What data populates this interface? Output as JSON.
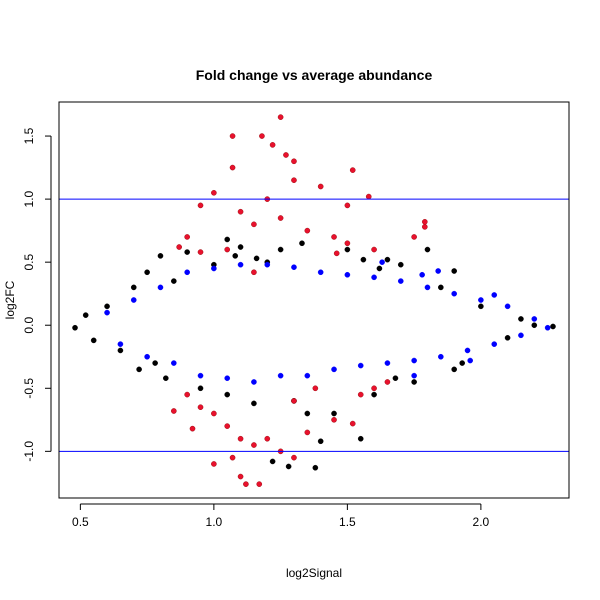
{
  "chart_data": {
    "type": "scatter",
    "title": "Fold change vs average abundance",
    "xlabel": "log2Signal",
    "ylabel": "log2FC",
    "xlim": [
      0.42,
      2.33
    ],
    "ylim": [
      -1.37,
      1.77
    ],
    "xticks": [
      0.5,
      1.0,
      1.5,
      2.0
    ],
    "yticks": [
      -1.0,
      -0.5,
      0.0,
      0.5,
      1.0,
      1.5
    ],
    "xtick_labels": [
      "0.5",
      "1.0",
      "1.5",
      "2.0"
    ],
    "ytick_labels": [
      "-1.0",
      "-0.5",
      "0.0",
      "0.5",
      "1.0",
      "1.5"
    ],
    "hlines": [
      1.0,
      -1.0
    ],
    "hline_color": "#0000ff",
    "series_colors": {
      "black": "#000000",
      "blue": "#0000ff",
      "red": "#e8112d"
    },
    "grid": false,
    "legend": "none",
    "points": {
      "black": [
        [
          0.48,
          -0.02
        ],
        [
          0.52,
          0.08
        ],
        [
          0.55,
          -0.12
        ],
        [
          0.6,
          0.15
        ],
        [
          0.65,
          -0.2
        ],
        [
          0.7,
          0.3
        ],
        [
          0.72,
          -0.35
        ],
        [
          0.75,
          0.42
        ],
        [
          0.78,
          -0.3
        ],
        [
          0.8,
          0.55
        ],
        [
          0.82,
          -0.42
        ],
        [
          0.85,
          0.35
        ],
        [
          0.9,
          0.58
        ],
        [
          0.95,
          -0.5
        ],
        [
          1.0,
          0.48
        ],
        [
          1.05,
          -0.55
        ],
        [
          1.08,
          0.55
        ],
        [
          1.1,
          0.62
        ],
        [
          1.15,
          -0.62
        ],
        [
          1.2,
          0.5
        ],
        [
          1.25,
          0.6
        ],
        [
          1.3,
          -0.6
        ],
        [
          1.33,
          0.65
        ],
        [
          1.35,
          -0.7
        ],
        [
          1.4,
          -0.92
        ],
        [
          1.45,
          -0.7
        ],
        [
          1.5,
          0.6
        ],
        [
          1.55,
          -0.9
        ],
        [
          1.6,
          -0.55
        ],
        [
          1.65,
          0.52
        ],
        [
          1.7,
          0.48
        ],
        [
          1.75,
          -0.45
        ],
        [
          1.8,
          0.6
        ],
        [
          1.85,
          0.3
        ],
        [
          1.9,
          -0.35
        ],
        [
          2.0,
          0.15
        ],
        [
          2.1,
          -0.1
        ],
        [
          2.15,
          0.05
        ],
        [
          2.2,
          0.0
        ],
        [
          2.27,
          -0.01
        ],
        [
          1.22,
          -1.08
        ],
        [
          1.28,
          -1.12
        ],
        [
          1.38,
          -1.13
        ],
        [
          1.05,
          0.68
        ],
        [
          1.16,
          0.53
        ],
        [
          1.68,
          -0.42
        ],
        [
          1.56,
          0.52
        ],
        [
          1.62,
          0.45
        ],
        [
          1.9,
          0.43
        ],
        [
          1.93,
          -0.3
        ]
      ],
      "blue": [
        [
          0.6,
          0.1
        ],
        [
          0.65,
          -0.15
        ],
        [
          0.7,
          0.2
        ],
        [
          0.75,
          -0.25
        ],
        [
          0.8,
          0.3
        ],
        [
          0.85,
          -0.3
        ],
        [
          0.9,
          0.42
        ],
        [
          0.95,
          -0.4
        ],
        [
          1.0,
          0.45
        ],
        [
          1.05,
          -0.42
        ],
        [
          1.1,
          0.48
        ],
        [
          1.15,
          -0.45
        ],
        [
          1.2,
          0.48
        ],
        [
          1.25,
          -0.4
        ],
        [
          1.3,
          0.46
        ],
        [
          1.35,
          -0.4
        ],
        [
          1.4,
          0.42
        ],
        [
          1.45,
          -0.35
        ],
        [
          1.5,
          0.4
        ],
        [
          1.55,
          -0.32
        ],
        [
          1.6,
          0.38
        ],
        [
          1.65,
          -0.3
        ],
        [
          1.7,
          0.35
        ],
        [
          1.75,
          -0.28
        ],
        [
          1.8,
          0.3
        ],
        [
          1.85,
          -0.25
        ],
        [
          1.9,
          0.25
        ],
        [
          1.95,
          -0.2
        ],
        [
          2.0,
          0.2
        ],
        [
          2.05,
          -0.15
        ],
        [
          2.1,
          0.15
        ],
        [
          2.15,
          -0.08
        ],
        [
          2.2,
          0.05
        ],
        [
          2.25,
          -0.02
        ],
        [
          1.63,
          0.5
        ],
        [
          1.78,
          0.4
        ],
        [
          1.84,
          0.43
        ],
        [
          1.96,
          -0.28
        ],
        [
          1.75,
          -0.4
        ],
        [
          2.05,
          0.24
        ]
      ],
      "red": [
        [
          1.25,
          1.65
        ],
        [
          1.18,
          1.5
        ],
        [
          1.07,
          1.5
        ],
        [
          1.22,
          1.43
        ],
        [
          1.27,
          1.35
        ],
        [
          1.07,
          1.25
        ],
        [
          1.52,
          1.23
        ],
        [
          1.3,
          1.3
        ],
        [
          1.0,
          1.05
        ],
        [
          0.95,
          0.95
        ],
        [
          1.1,
          0.9
        ],
        [
          1.3,
          1.15
        ],
        [
          1.4,
          1.1
        ],
        [
          1.58,
          1.02
        ],
        [
          1.2,
          1.0
        ],
        [
          1.15,
          0.8
        ],
        [
          1.25,
          0.85
        ],
        [
          0.9,
          0.7
        ],
        [
          0.95,
          0.58
        ],
        [
          1.05,
          0.6
        ],
        [
          1.35,
          0.75
        ],
        [
          1.45,
          0.7
        ],
        [
          1.5,
          0.65
        ],
        [
          1.6,
          0.6
        ],
        [
          1.75,
          0.7
        ],
        [
          1.79,
          0.82
        ],
        [
          1.79,
          0.78
        ],
        [
          0.9,
          -0.55
        ],
        [
          0.95,
          -0.65
        ],
        [
          1.0,
          -0.7
        ],
        [
          1.05,
          -0.8
        ],
        [
          1.1,
          -0.9
        ],
        [
          1.15,
          -0.95
        ],
        [
          1.2,
          -0.9
        ],
        [
          1.25,
          -1.0
        ],
        [
          1.1,
          -1.2
        ],
        [
          1.07,
          -1.05
        ],
        [
          1.12,
          -1.26
        ],
        [
          1.17,
          -1.26
        ],
        [
          1.3,
          -1.05
        ],
        [
          1.35,
          -0.85
        ],
        [
          1.45,
          -0.75
        ],
        [
          1.52,
          -0.78
        ],
        [
          1.55,
          -0.55
        ],
        [
          1.6,
          -0.5
        ],
        [
          1.65,
          -0.45
        ],
        [
          1.3,
          -0.6
        ],
        [
          1.38,
          -0.5
        ],
        [
          0.85,
          -0.68
        ],
        [
          0.92,
          -0.82
        ],
        [
          1.0,
          -1.1
        ],
        [
          0.87,
          0.62
        ],
        [
          1.5,
          0.95
        ],
        [
          1.46,
          0.57
        ],
        [
          1.15,
          0.42
        ]
      ]
    }
  }
}
